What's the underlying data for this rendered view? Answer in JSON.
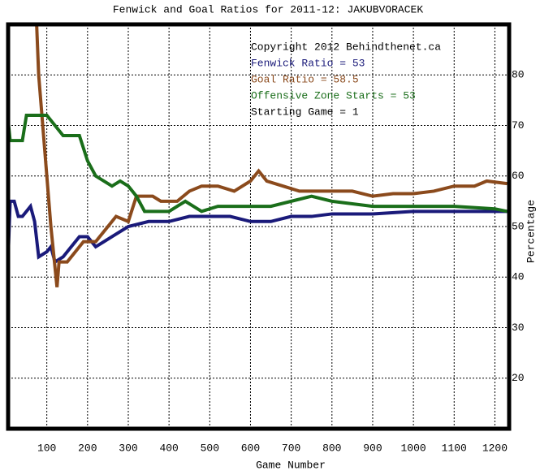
{
  "chart_data": {
    "type": "line",
    "title": "Fenwick and Goal Ratios for 2011-12: JAKUBVORACEK",
    "x_label": "Game Number",
    "y_label": "Percentage",
    "annotations": [
      "Copyright 2012 Behindthenet.ca",
      "Starting Game = 1"
    ],
    "xlim": [
      5,
      1235
    ],
    "ylim": [
      10,
      90
    ],
    "xticks": [
      100,
      200,
      300,
      400,
      500,
      600,
      700,
      800,
      900,
      1000,
      1100,
      1200
    ],
    "yticks": [
      20,
      30,
      40,
      50,
      60,
      70,
      80
    ],
    "grid": true,
    "series": [
      {
        "name": "Fenwick Ratio = 53",
        "color": "#1a1a7a",
        "x": [
          5,
          10,
          20,
          30,
          40,
          60,
          70,
          80,
          100,
          110,
          120,
          140,
          160,
          180,
          200,
          220,
          260,
          300,
          350,
          400,
          450,
          500,
          550,
          600,
          650,
          700,
          750,
          800,
          900,
          1000,
          1100,
          1200,
          1230
        ],
        "values": [
          44,
          55,
          55,
          52,
          52,
          54,
          51,
          44,
          45,
          46,
          43,
          44,
          46,
          48,
          48,
          46,
          48,
          50,
          51,
          51,
          52,
          52,
          52,
          51,
          51,
          52,
          52,
          52.5,
          52.5,
          53,
          53,
          53,
          53
        ]
      },
      {
        "name": "Goal Ratio = 58.5",
        "color": "#8b4a1c",
        "x": [
          75,
          80,
          90,
          100,
          110,
          120,
          125,
          130,
          150,
          170,
          190,
          220,
          250,
          270,
          300,
          320,
          360,
          380,
          420,
          450,
          480,
          520,
          560,
          600,
          620,
          640,
          680,
          720,
          760,
          800,
          850,
          900,
          950,
          1000,
          1050,
          1100,
          1150,
          1180,
          1230
        ],
        "values": [
          90,
          80,
          70,
          60,
          50,
          42,
          38,
          43,
          43,
          45,
          47,
          47,
          50,
          52,
          51,
          56,
          56,
          55,
          55,
          57,
          58,
          58,
          57,
          59,
          61,
          59,
          58,
          57,
          57,
          57,
          57,
          56,
          56.5,
          56.5,
          57,
          58,
          58,
          59,
          58.5
        ]
      },
      {
        "name": "Offensive Zone Starts = 53",
        "color": "#1a6e1a",
        "x": [
          5,
          10,
          40,
          50,
          80,
          100,
          120,
          140,
          180,
          200,
          220,
          240,
          260,
          280,
          300,
          320,
          340,
          400,
          440,
          480,
          520,
          560,
          600,
          650,
          700,
          750,
          800,
          900,
          950,
          1000,
          1100,
          1200,
          1230
        ],
        "values": [
          71,
          67,
          67,
          72,
          72,
          72,
          70,
          68,
          68,
          63,
          60,
          59,
          58,
          59,
          58,
          56,
          53,
          53,
          55,
          53,
          54,
          54,
          54,
          54,
          55,
          56,
          55,
          54,
          54,
          54,
          54,
          53.5,
          53
        ]
      }
    ]
  }
}
